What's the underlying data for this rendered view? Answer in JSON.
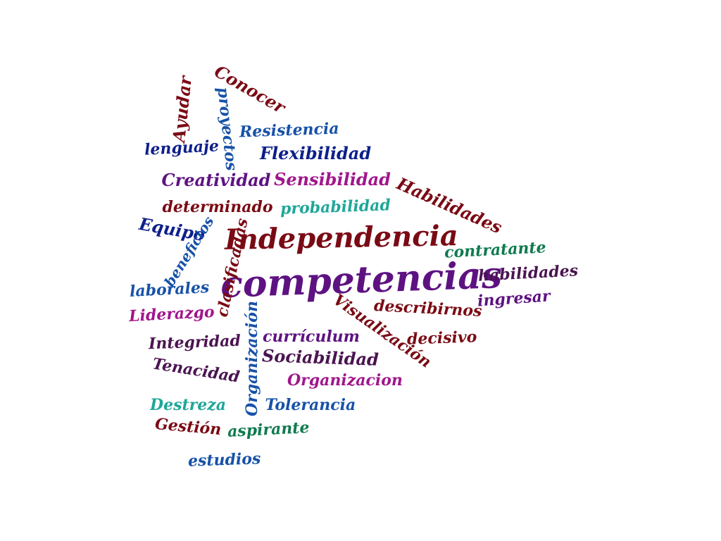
{
  "colors": {
    "maroon": "#7a0a14",
    "navy": "#0d1f8a",
    "blue": "#1752a8",
    "purple": "#5e1282",
    "magenta": "#a0168c",
    "teal": "#1fa79a",
    "green": "#0f7a4f",
    "plum": "#4a1450"
  },
  "words": [
    {
      "text": "competencias",
      "color": "purple"
    },
    {
      "text": "Independencia",
      "color": "maroon"
    },
    {
      "text": "Conocer",
      "color": "maroon"
    },
    {
      "text": "Ayudar",
      "color": "maroon"
    },
    {
      "text": "proyectos",
      "color": "blue"
    },
    {
      "text": "Resistencia",
      "color": "blue"
    },
    {
      "text": "lenguaje",
      "color": "navy"
    },
    {
      "text": "Flexibilidad",
      "color": "navy"
    },
    {
      "text": "Creatividad",
      "color": "purple"
    },
    {
      "text": "Sensibilidad",
      "color": "magenta"
    },
    {
      "text": "Habilidades",
      "color": "maroon"
    },
    {
      "text": "determinado",
      "color": "maroon"
    },
    {
      "text": "probabilidad",
      "color": "teal"
    },
    {
      "text": "Equipo",
      "color": "navy"
    },
    {
      "text": "beneficios",
      "color": "blue"
    },
    {
      "text": "clasificadas",
      "color": "maroon"
    },
    {
      "text": "contratante",
      "color": "green"
    },
    {
      "text": "habilidades",
      "color": "plum"
    },
    {
      "text": "laborales",
      "color": "blue"
    },
    {
      "text": "ingresar",
      "color": "purple"
    },
    {
      "text": "Liderazgo",
      "color": "magenta"
    },
    {
      "text": "Visualización",
      "color": "maroon"
    },
    {
      "text": "describirnos",
      "color": "maroon"
    },
    {
      "text": "Organización",
      "color": "blue"
    },
    {
      "text": "currículum",
      "color": "purple"
    },
    {
      "text": "decisivo",
      "color": "maroon"
    },
    {
      "text": "Integridad",
      "color": "plum"
    },
    {
      "text": "Sociabilidad",
      "color": "plum"
    },
    {
      "text": "Tenacidad",
      "color": "plum"
    },
    {
      "text": "Organizacion",
      "color": "magenta"
    },
    {
      "text": "Destreza",
      "color": "teal"
    },
    {
      "text": "Tolerancia",
      "color": "blue"
    },
    {
      "text": "Gestión",
      "color": "maroon"
    },
    {
      "text": "aspirante",
      "color": "green"
    },
    {
      "text": "estudios",
      "color": "blue"
    }
  ]
}
